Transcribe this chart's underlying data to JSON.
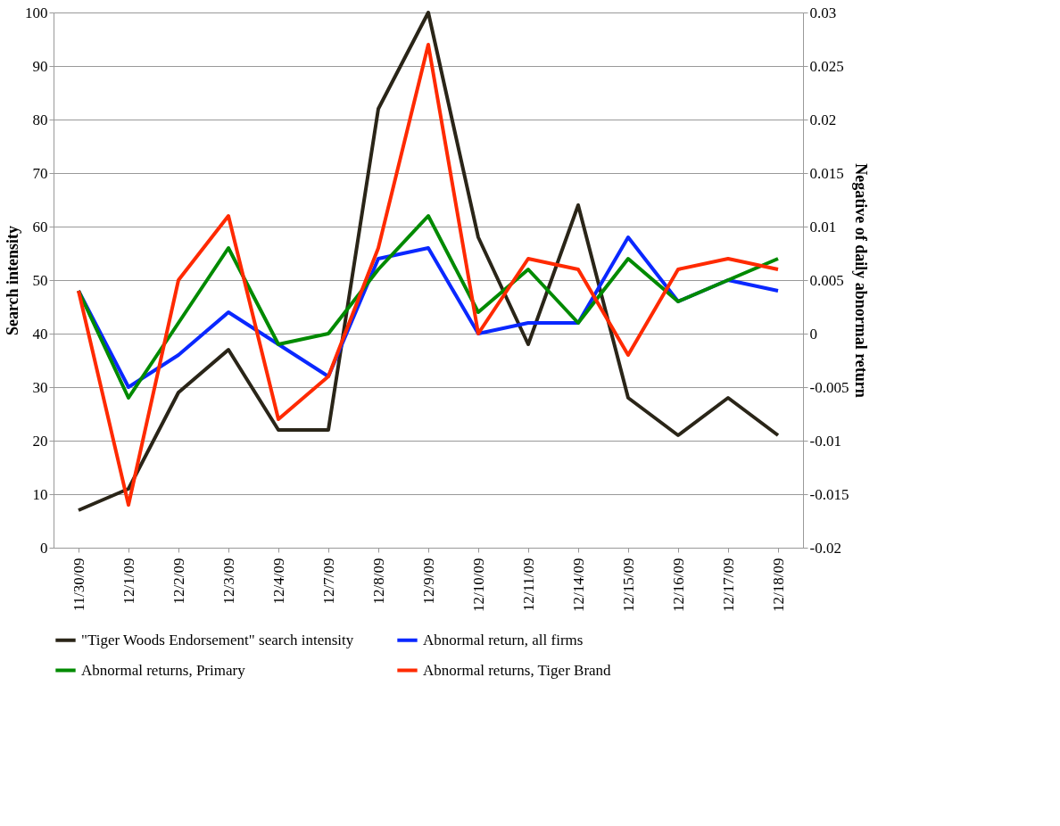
{
  "chart_data": {
    "type": "line",
    "ylabel": "Search intensity",
    "y2label": "Negative of daily abnormal return",
    "categories": [
      "11/30/09",
      "12/1/09",
      "12/2/09",
      "12/3/09",
      "12/4/09",
      "12/7/09",
      "12/8/09",
      "12/9/09",
      "12/10/09",
      "12/11/09",
      "12/14/09",
      "12/15/09",
      "12/16/09",
      "12/17/09",
      "12/18/09"
    ],
    "series": [
      {
        "name": "\"Tiger Woods Endorsement\" search intensity",
        "color": "#2a2518",
        "values": [
          7,
          11,
          29,
          37,
          22,
          22,
          82,
          100,
          58,
          38,
          64,
          28,
          21,
          28,
          21
        ]
      },
      {
        "name": "Abnormal return, all firms",
        "color": "#0a28ff",
        "axis": "y2",
        "values": [
          0.004,
          -0.005,
          -0.002,
          0.002,
          -0.001,
          -0.004,
          0.007,
          0.008,
          0,
          0.001,
          0.001,
          0.009,
          0.003,
          0.005,
          0.004
        ]
      },
      {
        "name": "Abnormal returns, Primary",
        "color": "#008a00",
        "axis": "y2",
        "values": [
          0.004,
          -0.006,
          0.001,
          0.008,
          -0.001,
          0,
          0.006,
          0.011,
          0.002,
          0.006,
          0.001,
          0.007,
          0.003,
          0.005,
          0.007
        ]
      },
      {
        "name": "Abnormal returns, Tiger Brand",
        "color": "#ff2a00",
        "axis": "y2",
        "values": [
          0.004,
          -0.016,
          0.005,
          0.011,
          -0.008,
          -0.004,
          0.008,
          0.027,
          0,
          0.007,
          0.006,
          -0.002,
          0.006,
          0.007,
          0.006
        ]
      }
    ],
    "ylim": [
      0,
      100
    ],
    "yticks": [
      0,
      10,
      20,
      30,
      40,
      50,
      60,
      70,
      80,
      90,
      100
    ],
    "y2lim": [
      -0.02,
      0.03
    ],
    "y2ticks": [
      -0.02,
      -0.015,
      -0.01,
      -0.005,
      0,
      0.005,
      0.01,
      0.015,
      0.02,
      0.025,
      0.03
    ],
    "grid": "y",
    "legend": "bottom",
    "marker": "none",
    "line_style": "solid"
  }
}
